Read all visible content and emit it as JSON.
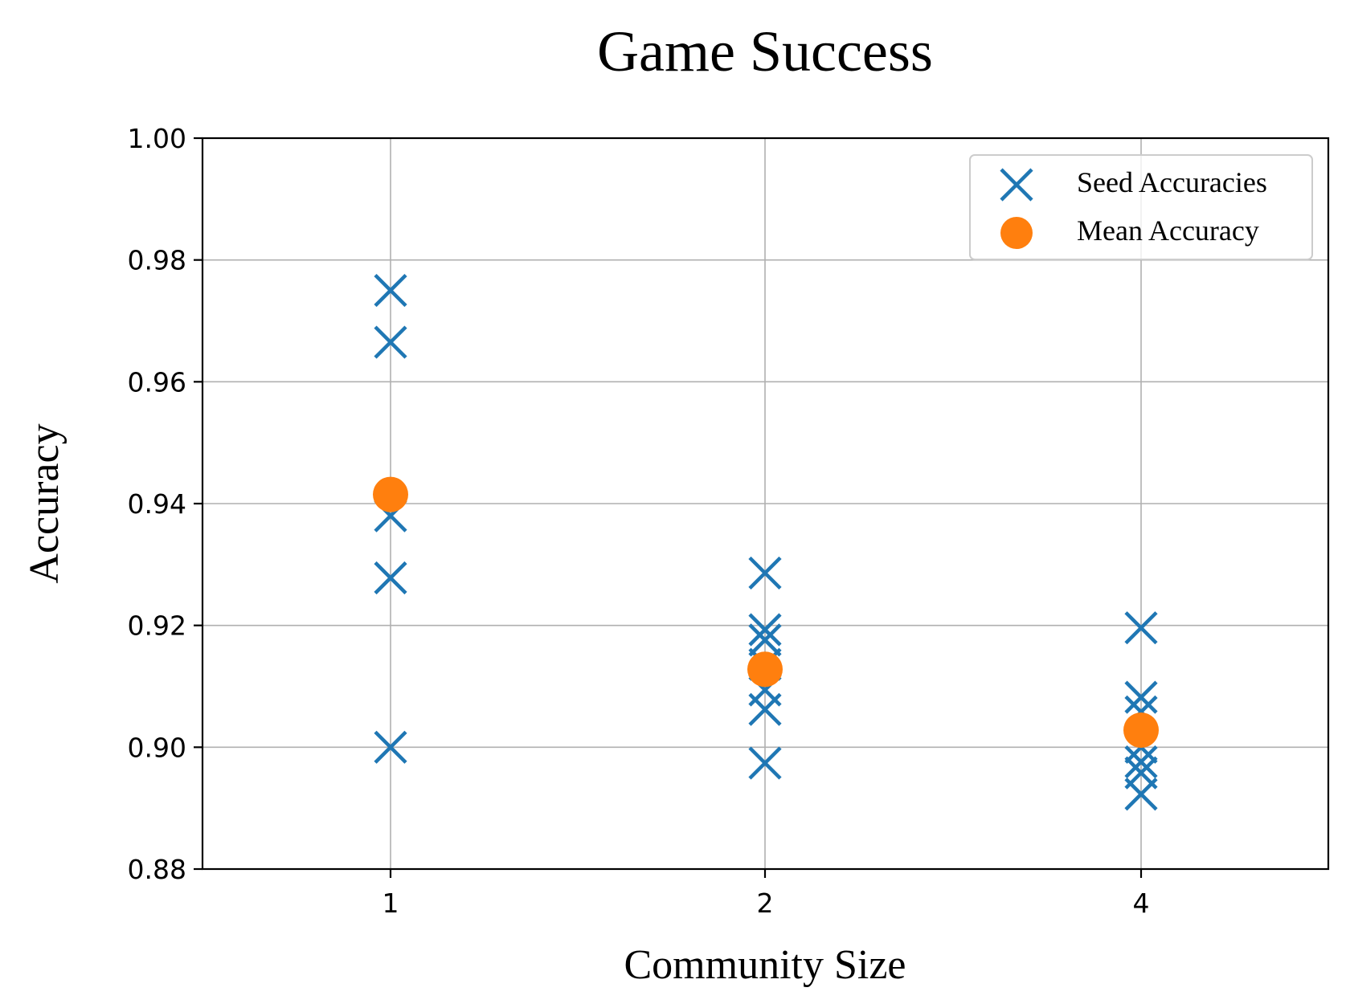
{
  "chart_data": {
    "type": "scatter",
    "title": "Game Success",
    "xlabel": "Community Size",
    "ylabel": "Accuracy",
    "categories": [
      "1",
      "2",
      "4"
    ],
    "ylim": [
      0.88,
      1.0
    ],
    "yticks": [
      "0.88",
      "0.90",
      "0.92",
      "0.94",
      "0.96",
      "0.98",
      "1.00"
    ],
    "grid": true,
    "legend_position": "top-right",
    "series": [
      {
        "name": "Seed Accuracies",
        "marker": "x",
        "color": "#1f77b4",
        "points": [
          {
            "x": "1",
            "y": 0.975
          },
          {
            "x": "1",
            "y": 0.9665
          },
          {
            "x": "1",
            "y": 0.938
          },
          {
            "x": "1",
            "y": 0.9278
          },
          {
            "x": "1",
            "y": 0.9
          },
          {
            "x": "2",
            "y": 0.9286
          },
          {
            "x": "2",
            "y": 0.9193
          },
          {
            "x": "2",
            "y": 0.9176
          },
          {
            "x": "2",
            "y": 0.9136
          },
          {
            "x": "2",
            "y": 0.9094
          },
          {
            "x": "2",
            "y": 0.9062
          },
          {
            "x": "2",
            "y": 0.8974
          },
          {
            "x": "4",
            "y": 0.9196
          },
          {
            "x": "4",
            "y": 0.9082
          },
          {
            "x": "4",
            "y": 0.9058
          },
          {
            "x": "4",
            "y": 0.9
          },
          {
            "x": "4",
            "y": 0.8976
          },
          {
            "x": "4",
            "y": 0.8958
          },
          {
            "x": "4",
            "y": 0.8923
          }
        ]
      },
      {
        "name": "Mean Accuracy",
        "marker": "o",
        "color": "#ff7f0e",
        "points": [
          {
            "x": "1",
            "y": 0.9415
          },
          {
            "x": "2",
            "y": 0.9128
          },
          {
            "x": "4",
            "y": 0.9028
          }
        ]
      }
    ]
  }
}
